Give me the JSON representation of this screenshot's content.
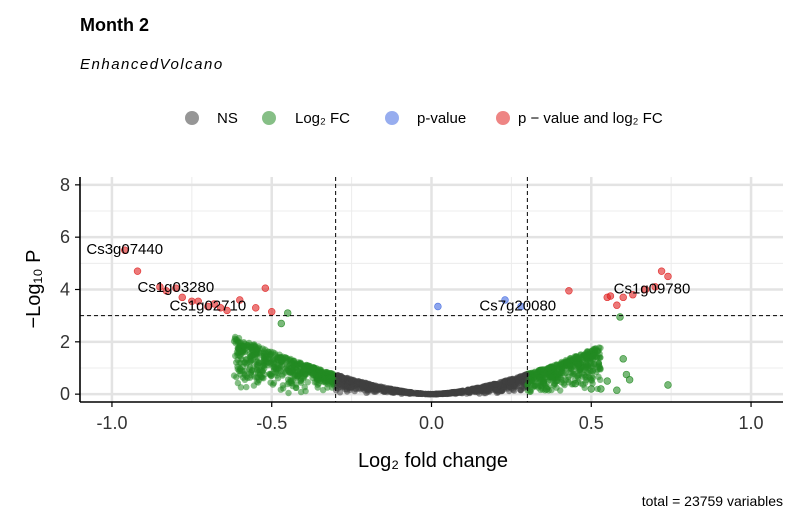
{
  "chart_data": {
    "type": "scatter",
    "title": "Month 2",
    "subtitle": "EnhancedVolcano",
    "xlabel": "Log₂ fold change",
    "ylabel": "−Log₁₀ P",
    "caption": "total = 23759 variables",
    "xlim": [
      -1.1,
      1.1
    ],
    "ylim": [
      -0.3,
      8.3
    ],
    "xticks": [
      -1.0,
      -0.5,
      0.0,
      0.5,
      1.0
    ],
    "xtick_labels": [
      "-1.0",
      "-0.5",
      "0.0",
      "0.5",
      "1.0"
    ],
    "yticks": [
      0,
      2,
      4,
      6,
      8
    ],
    "ytick_labels": [
      "0",
      "2",
      "4",
      "6",
      "8"
    ],
    "fc_cutoff": 0.3,
    "p_cutoff": 3.0,
    "grid": true,
    "legend_position": "top",
    "legend": [
      {
        "key": "ns",
        "label": "NS",
        "color": "#404040"
      },
      {
        "key": "fc",
        "label": "Log₂ FC",
        "color": "#228b22"
      },
      {
        "key": "p",
        "label": "p-value",
        "color": "#4169e1"
      },
      {
        "key": "both",
        "label": "p − value and log₂ FC",
        "color": "#e0201f"
      }
    ],
    "series": [
      {
        "key": "p",
        "color": "#4169e1",
        "points": [
          [
            0.02,
            3.35
          ],
          [
            0.23,
            3.6
          ],
          [
            0.28,
            3.35
          ]
        ]
      },
      {
        "key": "both",
        "color": "#e0201f",
        "points": [
          [
            -0.96,
            5.5
          ],
          [
            -0.92,
            4.7
          ],
          [
            -0.85,
            4.1
          ],
          [
            -0.83,
            3.95
          ],
          [
            -0.8,
            4.05
          ],
          [
            -0.78,
            3.7
          ],
          [
            -0.75,
            3.55
          ],
          [
            -0.73,
            3.55
          ],
          [
            -0.7,
            3.35
          ],
          [
            -0.68,
            3.45
          ],
          [
            -0.66,
            3.3
          ],
          [
            -0.64,
            3.2
          ],
          [
            -0.6,
            3.6
          ],
          [
            -0.55,
            3.3
          ],
          [
            -0.52,
            4.05
          ],
          [
            -0.5,
            3.15
          ],
          [
            0.43,
            3.95
          ],
          [
            0.55,
            3.7
          ],
          [
            0.56,
            3.75
          ],
          [
            0.58,
            3.4
          ],
          [
            0.6,
            3.7
          ],
          [
            0.63,
            3.8
          ],
          [
            0.67,
            4.0
          ],
          [
            0.7,
            4.1
          ],
          [
            0.72,
            4.7
          ],
          [
            0.74,
            4.5
          ]
        ]
      },
      {
        "key": "fc_outliers",
        "color": "#228b22",
        "points": [
          [
            0.35,
            0.45
          ],
          [
            0.36,
            0.2
          ],
          [
            0.38,
            0.65
          ],
          [
            0.45,
            0.4
          ],
          [
            0.5,
            0.2
          ],
          [
            0.53,
            0.2
          ],
          [
            0.55,
            0.5
          ],
          [
            0.58,
            0.15
          ],
          [
            0.6,
            1.35
          ],
          [
            0.61,
            0.75
          ],
          [
            0.62,
            0.55
          ],
          [
            0.74,
            0.35
          ],
          [
            0.59,
            2.95
          ],
          [
            -0.45,
            3.1
          ],
          [
            -0.47,
            2.7
          ]
        ]
      }
    ],
    "labels": [
      {
        "text": "Cs3g07440",
        "x": -0.96,
        "y": 5.5
      },
      {
        "text": "Cs1g03280",
        "x": -0.8,
        "y": 4.05
      },
      {
        "text": "Cs1g02710",
        "x": -0.7,
        "y": 3.35
      },
      {
        "text": "Cs7g20080",
        "x": 0.27,
        "y": 3.35
      },
      {
        "text": "Cs1g09780",
        "x": 0.69,
        "y": 4.0
      }
    ]
  }
}
